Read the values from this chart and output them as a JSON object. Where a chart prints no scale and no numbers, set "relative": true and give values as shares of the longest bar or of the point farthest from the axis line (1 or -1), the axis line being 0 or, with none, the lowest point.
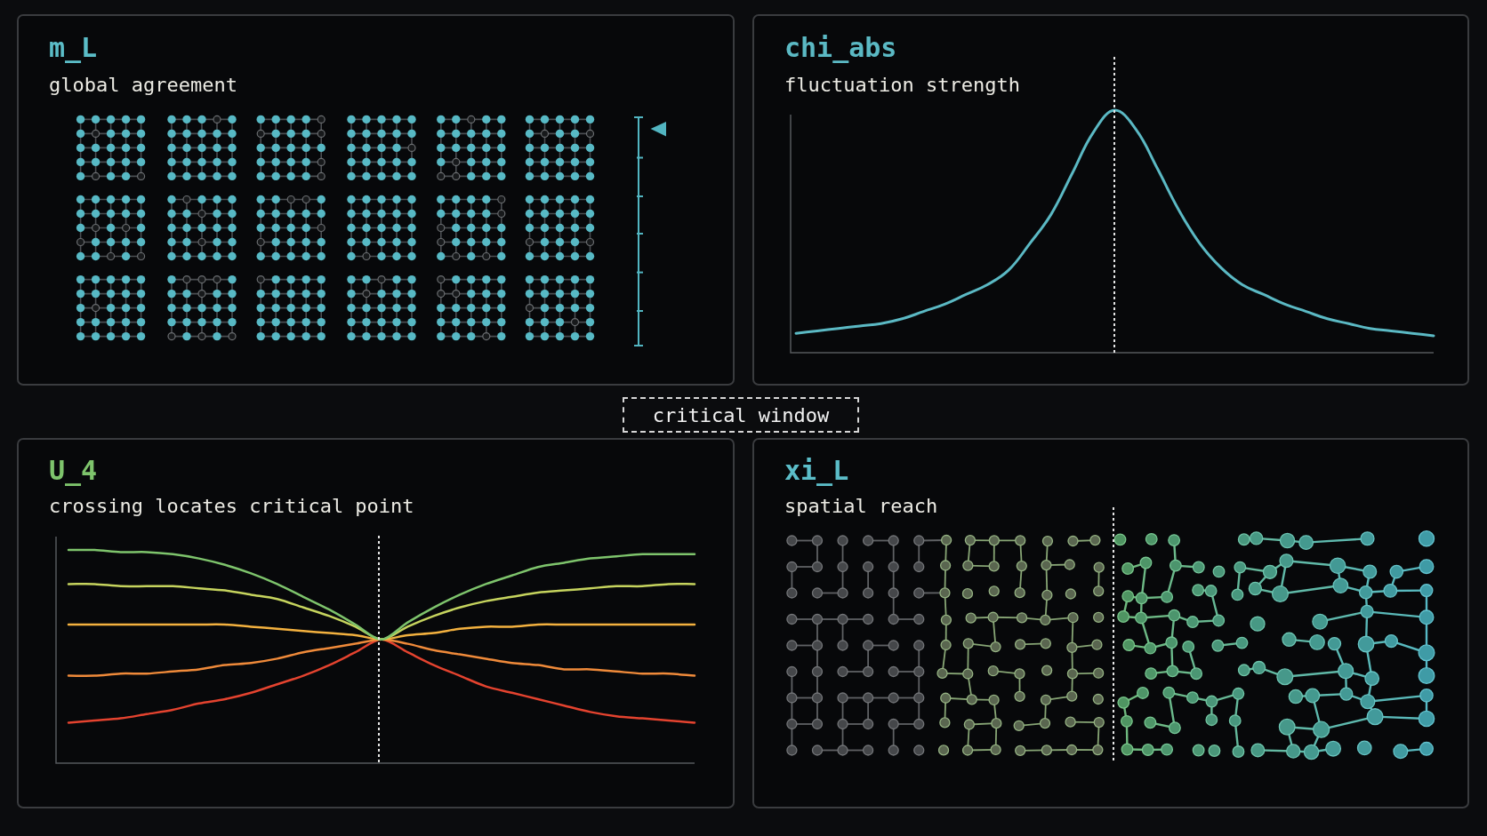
{
  "chart_data": [
    {
      "type": "other",
      "title": "m_L",
      "subtitle": "global agreement"
    },
    {
      "type": "line",
      "title": "chi_abs",
      "subtitle": "fluctuation strength",
      "relative": true,
      "categories": [
        null,
        null,
        null,
        null,
        null,
        null,
        null,
        null,
        null,
        null,
        null,
        null,
        null,
        null,
        null,
        null,
        null,
        null,
        null,
        null,
        null,
        null,
        null,
        null,
        null,
        null,
        null,
        null,
        null,
        null,
        null
      ],
      "series": [
        {
          "color": "#5bb9c4",
          "values": [
            0.08,
            0.09,
            0.1,
            0.11,
            0.12,
            0.14,
            0.17,
            0.2,
            0.24,
            0.28,
            0.34,
            0.45,
            0.57,
            0.74,
            0.91,
            1,
            0.92,
            0.76,
            0.59,
            0.45,
            0.35,
            0.28,
            0.24,
            0.2,
            0.17,
            0.14,
            0.12,
            0.1,
            0.09,
            0.08,
            0.07
          ]
        }
      ]
    },
    {
      "type": "other",
      "title": "critical window"
    },
    {
      "type": "line",
      "title": "U_4",
      "subtitle": "crossing locates critical point",
      "relative": true,
      "categories": [
        null,
        null,
        null,
        null,
        null,
        null,
        null,
        null,
        null,
        null,
        null,
        null,
        null,
        null,
        null,
        null,
        null,
        null,
        null,
        null,
        null,
        null,
        null,
        null,
        null
      ],
      "series": [
        {
          "color": "#7ec46c",
          "values": [
            1.0,
            1.0,
            0.99,
            0.99,
            0.98,
            0.96,
            0.93,
            0.89,
            0.84,
            0.78,
            0.72,
            0.65,
            0.58,
            0.66,
            0.73,
            0.79,
            0.84,
            0.88,
            0.92,
            0.94,
            0.96,
            0.97,
            0.98,
            0.98,
            0.98
          ]
        },
        {
          "color": "#c6d45e",
          "values": [
            0.84,
            0.84,
            0.83,
            0.83,
            0.83,
            0.82,
            0.81,
            0.79,
            0.77,
            0.73,
            0.69,
            0.64,
            0.58,
            0.64,
            0.69,
            0.73,
            0.76,
            0.78,
            0.8,
            0.81,
            0.82,
            0.83,
            0.83,
            0.84,
            0.84
          ]
        },
        {
          "color": "#f3b13f",
          "values": [
            0.65,
            0.65,
            0.65,
            0.65,
            0.65,
            0.65,
            0.65,
            0.64,
            0.63,
            0.62,
            0.61,
            0.6,
            0.58,
            0.6,
            0.61,
            0.63,
            0.64,
            0.64,
            0.65,
            0.65,
            0.65,
            0.65,
            0.65,
            0.65,
            0.65
          ]
        },
        {
          "color": "#ef8a3a",
          "values": [
            0.41,
            0.41,
            0.42,
            0.42,
            0.43,
            0.44,
            0.46,
            0.47,
            0.49,
            0.52,
            0.54,
            0.56,
            0.58,
            0.56,
            0.53,
            0.51,
            0.49,
            0.47,
            0.46,
            0.44,
            0.44,
            0.43,
            0.42,
            0.42,
            0.41
          ]
        },
        {
          "color": "#e4432f",
          "values": [
            0.19,
            0.2,
            0.21,
            0.23,
            0.25,
            0.28,
            0.3,
            0.33,
            0.37,
            0.41,
            0.46,
            0.52,
            0.58,
            0.52,
            0.46,
            0.41,
            0.36,
            0.33,
            0.3,
            0.27,
            0.24,
            0.22,
            0.21,
            0.2,
            0.19
          ]
        }
      ]
    },
    {
      "type": "other",
      "title": "xi_L",
      "subtitle": "spatial reach"
    }
  ]
}
